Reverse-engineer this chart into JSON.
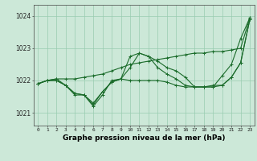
{
  "title": "Graphe pression niveau de la mer (hPa)",
  "ylabel_ticks": [
    1021,
    1022,
    1023,
    1024
  ],
  "xticks": [
    0,
    1,
    2,
    3,
    4,
    5,
    6,
    7,
    8,
    9,
    10,
    11,
    12,
    13,
    14,
    15,
    16,
    17,
    18,
    19,
    20,
    21,
    22,
    23
  ],
  "xlim": [
    -0.5,
    23.5
  ],
  "ylim": [
    1020.6,
    1024.35
  ],
  "bg_color": "#cce8d8",
  "grid_color": "#99ccb0",
  "line_color": "#1a6b2a",
  "lines": [
    [
      1021.9,
      1022.0,
      1022.0,
      1021.85,
      1021.6,
      1021.55,
      1021.3,
      1021.65,
      1021.95,
      1022.05,
      1022.0,
      1022.0,
      1022.0,
      1022.0,
      1021.95,
      1021.85,
      1021.8,
      1021.8,
      1021.8,
      1021.85,
      1021.85,
      1022.1,
      1022.55,
      1023.9
    ],
    [
      1021.9,
      1022.0,
      1022.05,
      1021.85,
      1021.55,
      1021.55,
      1021.2,
      1021.55,
      1022.0,
      1022.05,
      1022.75,
      1022.85,
      1022.75,
      1022.6,
      1022.4,
      1022.3,
      1022.1,
      1021.8,
      1021.8,
      1021.8,
      1022.15,
      1022.5,
      1023.3,
      1023.95
    ],
    [
      1021.9,
      1022.0,
      1022.0,
      1021.85,
      1021.6,
      1021.55,
      1021.25,
      1021.65,
      1021.95,
      1022.05,
      1022.4,
      1022.85,
      1022.75,
      1022.4,
      1022.2,
      1022.05,
      1021.85,
      1021.8,
      1021.8,
      1021.8,
      1021.85,
      1022.1,
      1022.55,
      1023.9
    ],
    [
      1021.9,
      1022.0,
      1022.05,
      1022.05,
      1022.05,
      1022.1,
      1022.15,
      1022.2,
      1022.3,
      1022.4,
      1022.5,
      1022.55,
      1022.6,
      1022.65,
      1022.7,
      1022.75,
      1022.8,
      1022.85,
      1022.85,
      1022.9,
      1022.9,
      1022.95,
      1023.0,
      1023.95
    ]
  ]
}
